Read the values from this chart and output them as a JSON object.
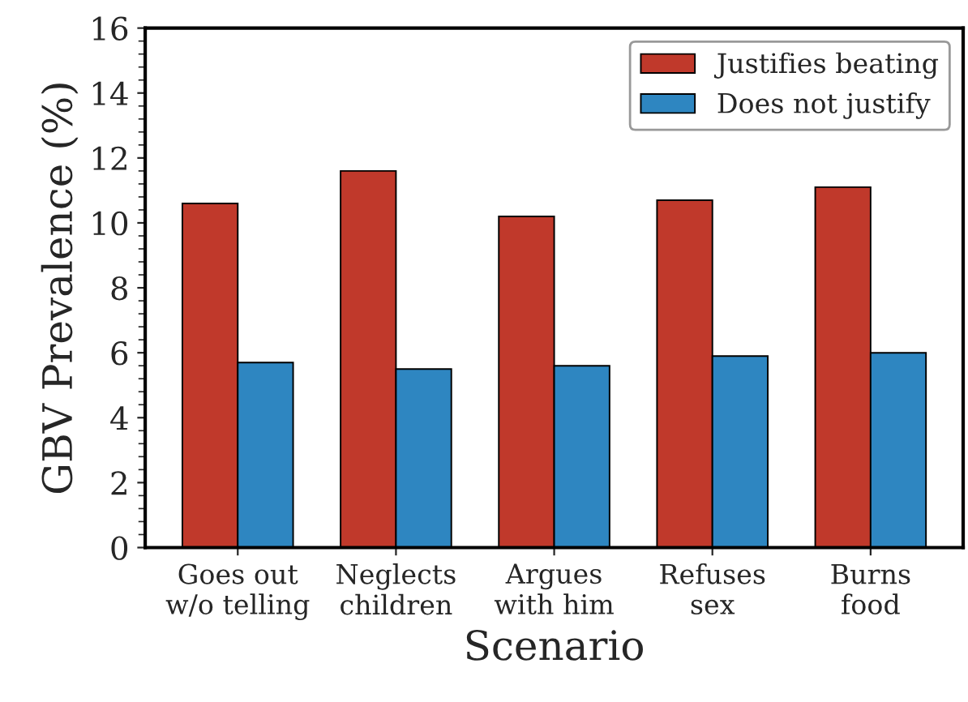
{
  "chart_data": {
    "type": "bar",
    "xlabel": "Scenario",
    "ylabel": "GBV Prevalence (%)",
    "categories": [
      "Goes out\nw/o telling",
      "Neglects\nchildren",
      "Argues\nwith him",
      "Refuses\nsex",
      "Burns\nfood"
    ],
    "series": [
      {
        "name": "Justifies beating",
        "color": "#c0392b",
        "values": [
          10.6,
          11.6,
          10.2,
          10.7,
          11.1
        ]
      },
      {
        "name": "Does not justify",
        "color": "#2e86c1",
        "values": [
          5.7,
          5.5,
          5.6,
          5.9,
          6.0
        ]
      }
    ],
    "ylim": [
      0,
      16
    ],
    "yticks": [
      0,
      2,
      4,
      6,
      8,
      10,
      12,
      14,
      16
    ],
    "grid": false,
    "legend": "top right"
  }
}
